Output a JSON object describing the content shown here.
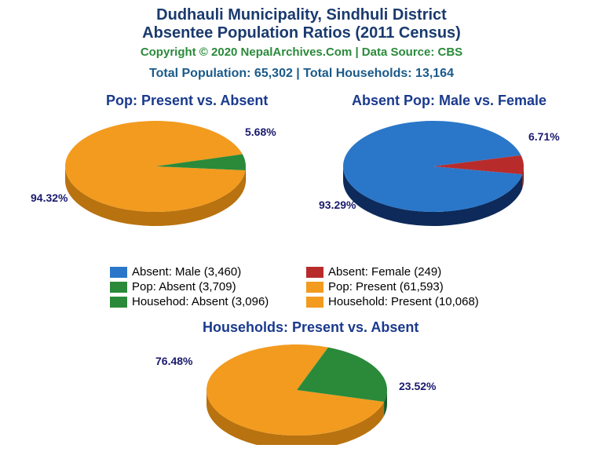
{
  "title_line1": "Dudhauli Municipality, Sindhuli District",
  "title_line2": "Absentee Population Ratios (2011 Census)",
  "copyright": "Copyright © 2020 NepalArchives.Com | Data Source: CBS",
  "totals": "Total Population: 65,302 | Total Households: 13,164",
  "colors": {
    "title": "#1a3a6e",
    "copyright": "#2a8a3a",
    "totals": "#1a5a8a",
    "chart_title": "#1a3a8e",
    "label": "#1a1a6e",
    "blue": "#2a77c9",
    "blue_dark": "#0d2a5a",
    "red": "#b82b2b",
    "red_dark": "#7a1a1a",
    "green": "#2a8a3a",
    "green_dark": "#1a5a28",
    "orange": "#f29b1f",
    "orange_dark": "#b8720f"
  },
  "chart1": {
    "title": "Pop: Present vs. Absent",
    "slices": [
      {
        "label": "94.32%",
        "value": 94.32,
        "color": "#f29b1f",
        "dark": "#b8720f"
      },
      {
        "label": "5.68%",
        "value": 5.68,
        "color": "#2a8a3a",
        "dark": "#1a5a28"
      }
    ]
  },
  "chart2": {
    "title": "Absent Pop: Male vs. Female",
    "slices": [
      {
        "label": "93.29%",
        "value": 93.29,
        "color": "#2a77c9",
        "dark": "#0d2a5a"
      },
      {
        "label": "6.71%",
        "value": 6.71,
        "color": "#b82b2b",
        "dark": "#7a1a1a"
      }
    ]
  },
  "chart3": {
    "title": "Households: Present vs. Absent",
    "slices": [
      {
        "label": "76.48%",
        "value": 76.48,
        "color": "#f29b1f",
        "dark": "#b8720f"
      },
      {
        "label": "23.52%",
        "value": 23.52,
        "color": "#2a8a3a",
        "dark": "#1a5a28"
      }
    ]
  },
  "legend": [
    [
      {
        "color": "#2a77c9",
        "text": "Absent: Male (3,460)"
      },
      {
        "color": "#b82b2b",
        "text": "Absent: Female (249)"
      }
    ],
    [
      {
        "color": "#2a8a3a",
        "text": "Pop: Absent (3,709)"
      },
      {
        "color": "#f29b1f",
        "text": "Pop: Present (61,593)"
      }
    ],
    [
      {
        "color": "#2a8a3a",
        "text": "Househod: Absent (3,096)"
      },
      {
        "color": "#f29b1f",
        "text": "Household: Present (10,068)"
      }
    ]
  ]
}
